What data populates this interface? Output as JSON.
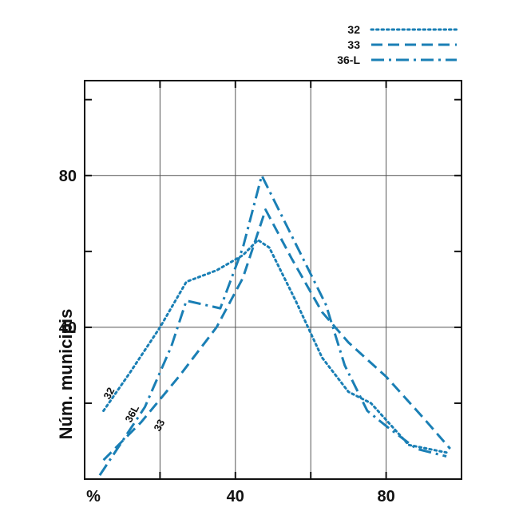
{
  "chart_data": {
    "type": "line",
    "title": "",
    "xlabel": "%",
    "ylabel": "Núm. municipis",
    "xlim": [
      0,
      100
    ],
    "ylim": [
      0,
      105
    ],
    "x_ticks": [
      40,
      80
    ],
    "y_ticks": [
      40,
      80
    ],
    "x_gridlines": [
      20,
      40,
      60,
      80
    ],
    "y_gridlines": [
      40,
      80
    ],
    "grid": true,
    "legend_position": "top-right",
    "series": [
      {
        "name": "32",
        "label_on_plot": "32",
        "style": "dotted",
        "color": "#1a7fb5",
        "x": [
          5,
          12,
          20,
          27,
          35,
          42,
          46,
          49,
          56,
          63,
          70,
          76,
          86,
          96
        ],
        "y": [
          18,
          28,
          40,
          52,
          55,
          59,
          63,
          61,
          47,
          32,
          23,
          20,
          9,
          7
        ]
      },
      {
        "name": "33",
        "label_on_plot": "33",
        "style": "dashed",
        "color": "#1a7fb5",
        "x": [
          5,
          15,
          25,
          35,
          42,
          48,
          55,
          63,
          70,
          80,
          90,
          97
        ],
        "y": [
          5,
          15,
          27,
          40,
          53,
          71,
          58,
          44,
          36,
          27,
          16,
          8
        ]
      },
      {
        "name": "36-L",
        "label_on_plot": "36L",
        "style": "dashdot",
        "color": "#1a7fb5",
        "x": [
          4,
          10,
          16,
          23,
          27,
          36,
          42,
          47,
          52,
          58,
          64,
          69,
          75,
          80,
          88,
          96
        ],
        "y": [
          1,
          10,
          19,
          35,
          47,
          45,
          61,
          80,
          70,
          58,
          46,
          30,
          18,
          14,
          8,
          6
        ]
      }
    ]
  }
}
